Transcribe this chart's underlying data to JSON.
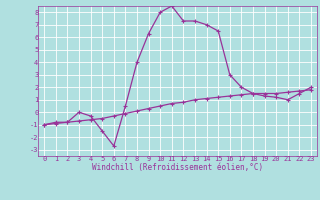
{
  "xlabel": "Windchill (Refroidissement éolien,°C)",
  "xlim": [
    -0.5,
    23.5
  ],
  "ylim": [
    -3.5,
    8.5
  ],
  "xticks": [
    0,
    1,
    2,
    3,
    4,
    5,
    6,
    7,
    8,
    9,
    10,
    11,
    12,
    13,
    14,
    15,
    16,
    17,
    18,
    19,
    20,
    21,
    22,
    23
  ],
  "yticks": [
    -3,
    -2,
    -1,
    0,
    1,
    2,
    3,
    4,
    5,
    6,
    7,
    8
  ],
  "bg_color": "#b0e0e0",
  "line_color": "#993399",
  "grid_color": "#ffffff",
  "temp_x": [
    0,
    1,
    2,
    3,
    4,
    5,
    6,
    7,
    8,
    9,
    10,
    11,
    12,
    13,
    14,
    15,
    16,
    17,
    18,
    19,
    20,
    21,
    22,
    23
  ],
  "temp_y": [
    -1.0,
    -0.8,
    -0.8,
    0.0,
    -0.3,
    -1.5,
    -2.7,
    0.5,
    4.0,
    6.3,
    8.0,
    8.5,
    7.3,
    7.3,
    7.0,
    6.5,
    3.0,
    2.0,
    1.5,
    1.3,
    1.2,
    1.0,
    1.5,
    2.0
  ],
  "wind_x": [
    0,
    1,
    2,
    3,
    4,
    5,
    6,
    7,
    8,
    9,
    10,
    11,
    12,
    13,
    14,
    15,
    16,
    17,
    18,
    19,
    20,
    21,
    22,
    23
  ],
  "wind_y": [
    -1.0,
    -0.9,
    -0.8,
    -0.7,
    -0.6,
    -0.5,
    -0.3,
    -0.1,
    0.1,
    0.3,
    0.5,
    0.7,
    0.8,
    1.0,
    1.1,
    1.2,
    1.3,
    1.4,
    1.5,
    1.5,
    1.5,
    1.6,
    1.7,
    1.8
  ],
  "xlabel_fontsize": 5.5,
  "tick_fontsize": 5.0,
  "line_width": 0.9,
  "marker_size": 2.5
}
